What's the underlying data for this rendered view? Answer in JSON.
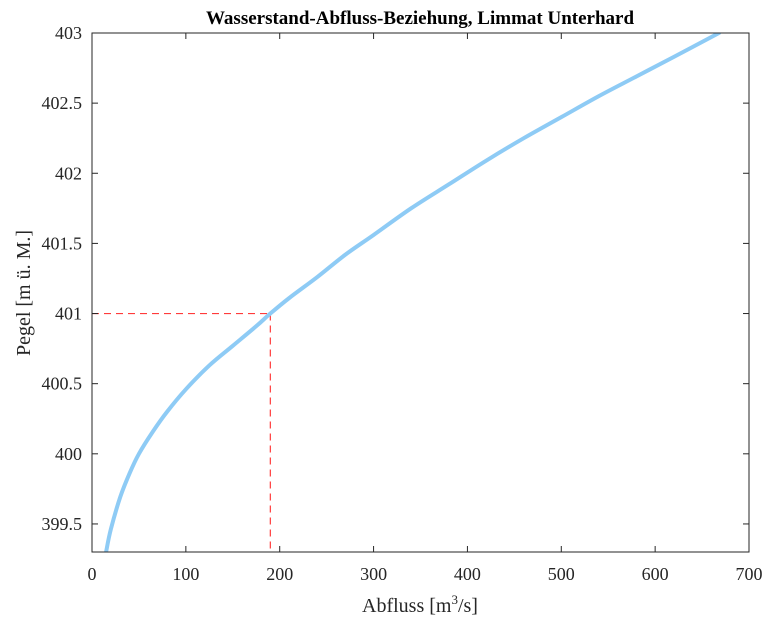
{
  "chart_data": {
    "type": "line",
    "title": "Wasserstand-Abfluss-Beziehung, Limmat Unterhard",
    "xlabel_base": "Abfluss [m",
    "xlabel_sup": "3",
    "xlabel_tail": "/s]",
    "ylabel": "Pegel [m ü. M.]",
    "xlim": [
      0,
      700
    ],
    "ylim": [
      399.3,
      403
    ],
    "xticks": [
      0,
      100,
      200,
      300,
      400,
      500,
      600,
      700
    ],
    "xtick_labels": [
      "0",
      "100",
      "200",
      "300",
      "400",
      "500",
      "600",
      "700"
    ],
    "yticks": [
      399.5,
      400,
      400.5,
      401,
      401.5,
      402,
      402.5,
      403
    ],
    "ytick_labels": [
      "399.5",
      "400",
      "400.5",
      "401",
      "401.5",
      "402",
      "402.5",
      "403"
    ],
    "grid": false,
    "series": [
      {
        "color": "#8ecbf5",
        "x": [
          15,
          20,
          30,
          40,
          50,
          65,
          80,
          100,
          125,
          150,
          175,
          190,
          210,
          240,
          270,
          300,
          340,
          380,
          420,
          460,
          500,
          540,
          580,
          620,
          668
        ],
        "y": [
          399.3,
          399.46,
          399.69,
          399.86,
          400.0,
          400.16,
          400.3,
          400.46,
          400.63,
          400.77,
          400.91,
          401.0,
          401.11,
          401.26,
          401.42,
          401.56,
          401.75,
          401.92,
          402.09,
          402.25,
          402.4,
          402.55,
          402.69,
          402.83,
          403.0
        ]
      }
    ],
    "reference": {
      "color": "#ff3b3b",
      "x": 190,
      "y": 401
    }
  }
}
